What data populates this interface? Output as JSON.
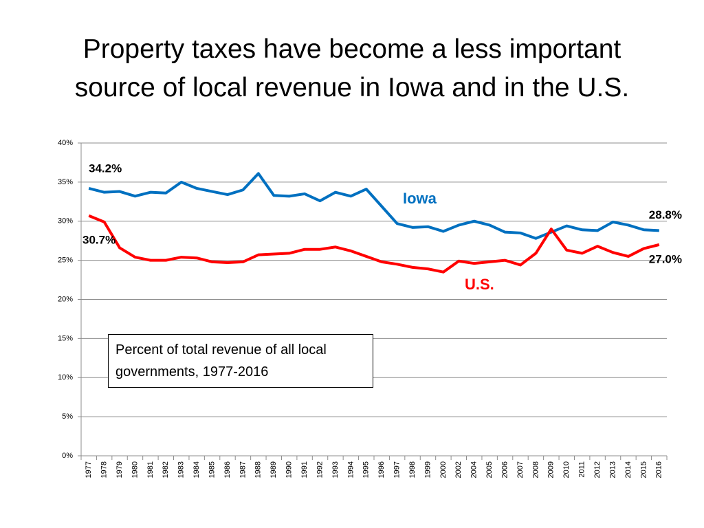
{
  "chart_data": {
    "type": "line",
    "title": "Property taxes have become a less important source of local revenue in Iowa and in the U.S.",
    "note": "Percent of total revenue of all local governments, 1977-2016",
    "categories": [
      "1977",
      "1978",
      "1979",
      "1980",
      "1981",
      "1982",
      "1983",
      "1984",
      "1985",
      "1986",
      "1987",
      "1988",
      "1989",
      "1990",
      "1991",
      "1992",
      "1993",
      "1994",
      "1995",
      "1996",
      "1997",
      "1998",
      "1999",
      "2000",
      "2002",
      "2004",
      "2005",
      "2006",
      "2007",
      "2008",
      "2009",
      "2010",
      "2011",
      "2012",
      "2013",
      "2014",
      "2015",
      "2016"
    ],
    "series": [
      {
        "name": "Iowa",
        "color": "#0070c0",
        "values": [
          34.2,
          33.7,
          33.8,
          33.2,
          33.7,
          33.6,
          35.0,
          34.2,
          33.8,
          33.4,
          34.0,
          36.1,
          33.3,
          33.2,
          33.5,
          32.6,
          33.7,
          33.2,
          34.1,
          31.9,
          29.7,
          29.2,
          29.3,
          28.7,
          29.5,
          30.0,
          29.5,
          28.6,
          28.5,
          27.8,
          28.6,
          29.4,
          28.9,
          28.8,
          29.9,
          29.5,
          28.9,
          28.8
        ],
        "first_label": "34.2%",
        "last_label": "28.8%"
      },
      {
        "name": "U.S.",
        "color": "#ff0000",
        "values": [
          30.7,
          29.9,
          26.6,
          25.4,
          25.0,
          25.0,
          25.4,
          25.3,
          24.8,
          24.7,
          24.8,
          25.7,
          25.8,
          25.9,
          26.4,
          26.4,
          26.7,
          26.2,
          25.5,
          24.8,
          24.5,
          24.1,
          23.9,
          23.5,
          24.9,
          24.6,
          24.8,
          25.0,
          24.4,
          25.9,
          29.0,
          26.3,
          25.9,
          26.8,
          26.0,
          25.5,
          26.5,
          27.0
        ],
        "first_label": "30.7%",
        "last_label": "27.0%"
      }
    ],
    "ylim": [
      0,
      40
    ],
    "yticks": [
      {
        "value": 0,
        "label": "0%"
      },
      {
        "value": 5,
        "label": "5%"
      },
      {
        "value": 10,
        "label": "10%"
      },
      {
        "value": 15,
        "label": "15%"
      },
      {
        "value": 20,
        "label": "20%"
      },
      {
        "value": 25,
        "label": "25%"
      },
      {
        "value": 30,
        "label": "30%"
      },
      {
        "value": 35,
        "label": "35%"
      },
      {
        "value": 40,
        "label": "40%"
      }
    ],
    "grid": true
  }
}
